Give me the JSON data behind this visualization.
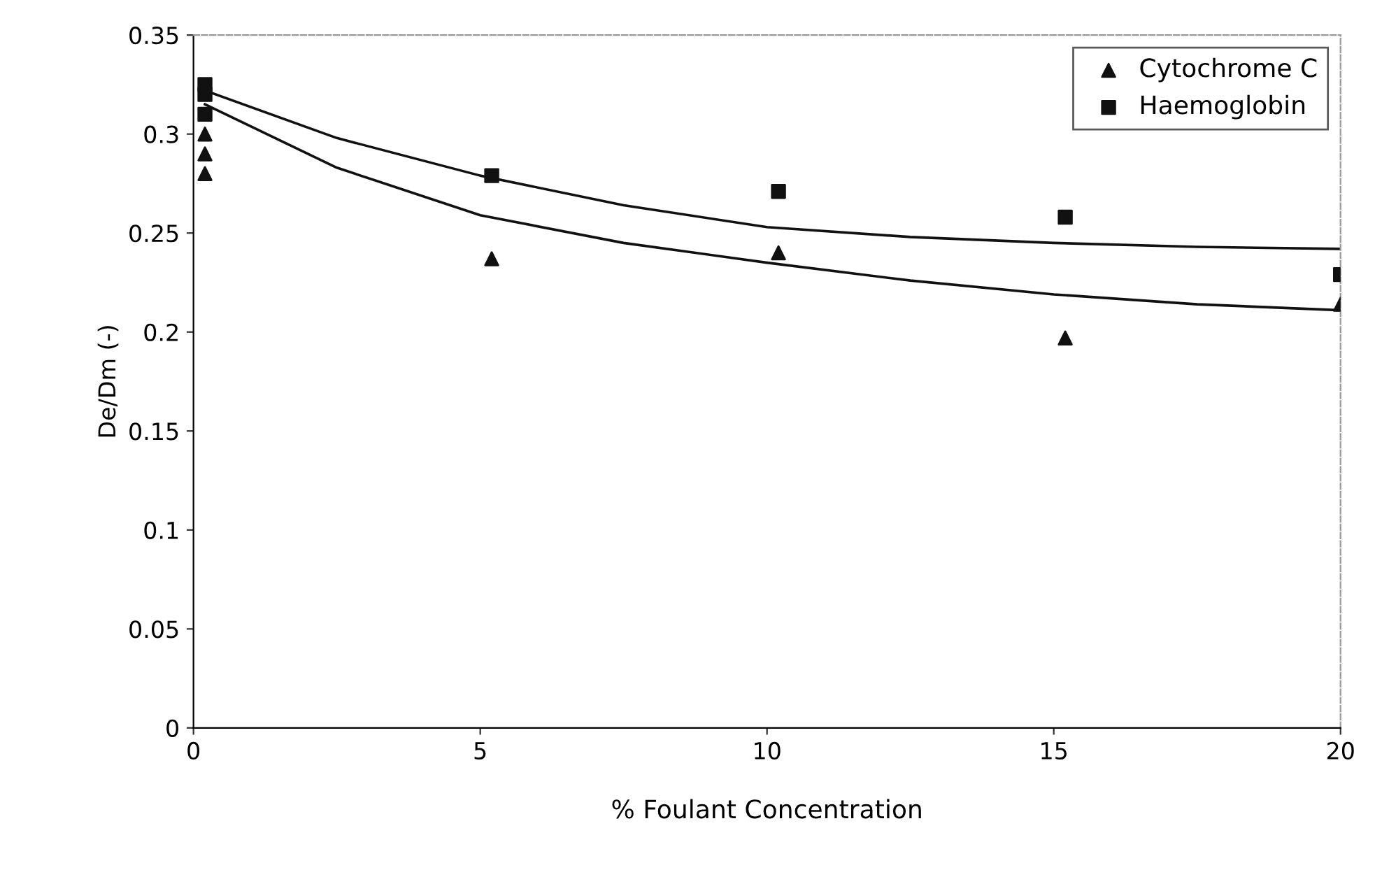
{
  "chart_data": {
    "type": "scatter",
    "xlabel": "% Foulant Concentration",
    "ylabel": "De/Dm (-)",
    "xlim": [
      0,
      20
    ],
    "ylim": [
      0,
      0.35
    ],
    "xticks": [
      0,
      5,
      10,
      15,
      20
    ],
    "yticks": [
      0,
      0.05,
      0.1,
      0.15,
      0.2,
      0.25,
      0.3,
      0.35
    ],
    "grid": false,
    "legend": "top right",
    "series": [
      {
        "name": "Cytochrome C",
        "marker": "triangle",
        "color": "#111111",
        "x": [
          0.2,
          0.2,
          0.2,
          5.2,
          10.2,
          15.2,
          20
        ],
        "values": [
          0.3,
          0.29,
          0.28,
          0.237,
          0.24,
          0.197,
          0.214
        ]
      },
      {
        "name": "Haemoglobin",
        "marker": "square",
        "color": "#111111",
        "x": [
          0.2,
          0.2,
          0.2,
          5.2,
          10.2,
          15.2,
          20
        ],
        "values": [
          0.325,
          0.32,
          0.31,
          0.279,
          0.271,
          0.258,
          0.229
        ]
      },
      {
        "type": "line",
        "color": "#111111",
        "line_style": "solid",
        "x": [
          0.2,
          2.5,
          5,
          7.5,
          10,
          12.5,
          15,
          17.5,
          20
        ],
        "values": [
          0.315,
          0.283,
          0.259,
          0.245,
          0.235,
          0.226,
          0.219,
          0.214,
          0.211
        ]
      },
      {
        "type": "line",
        "color": "#111111",
        "line_style": "solid",
        "x": [
          0.2,
          2.5,
          5,
          7.5,
          10,
          12.5,
          15,
          17.5,
          20
        ],
        "values": [
          0.322,
          0.298,
          0.279,
          0.264,
          0.253,
          0.248,
          0.245,
          0.243,
          0.242
        ]
      }
    ]
  }
}
